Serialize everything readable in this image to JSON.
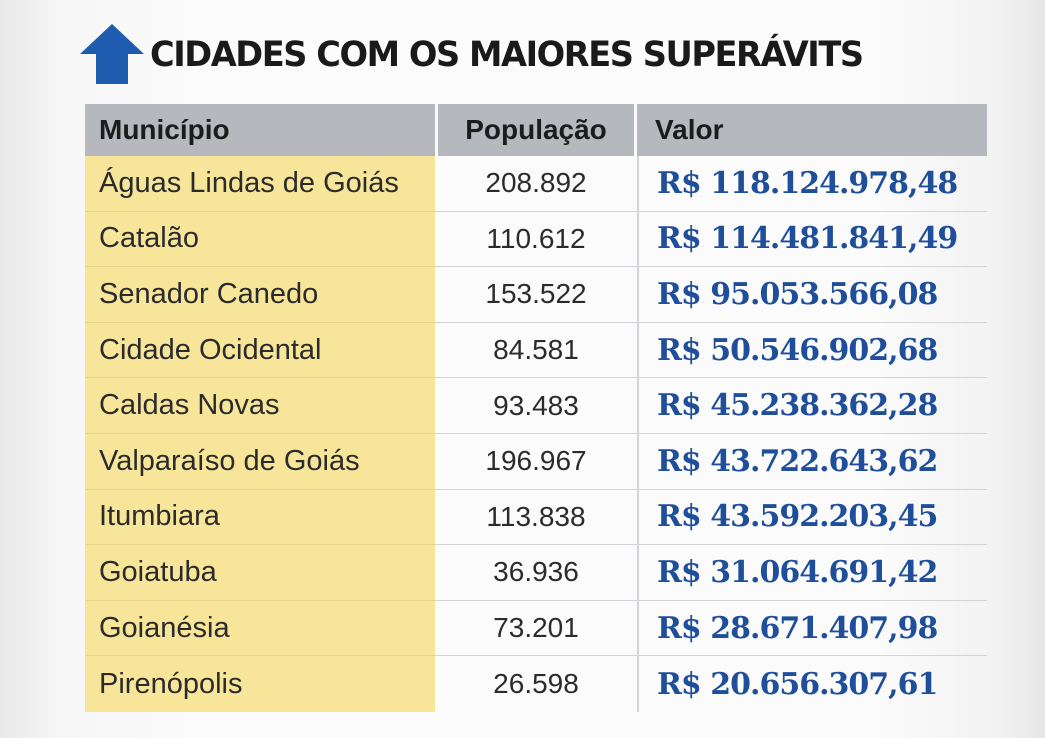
{
  "title": "CIDADES COM OS MAIORES SUPERÁVITS",
  "icon": "up-arrow-icon",
  "colors": {
    "arrow": "#1d5cae",
    "header_bg": "#b5b9be",
    "municipio_bg": "#f7e59a",
    "valor_text": "#1f4e9a"
  },
  "table": {
    "headers": {
      "municipio": "Município",
      "populacao": "População",
      "valor": "Valor"
    },
    "rows": [
      {
        "municipio": "Águas Lindas de Goiás",
        "populacao": "208.892",
        "valor": "R$ 118.124.978,48"
      },
      {
        "municipio": "Catalão",
        "populacao": "110.612",
        "valor": "R$ 114.481.841,49"
      },
      {
        "municipio": "Senador Canedo",
        "populacao": "153.522",
        "valor": "R$ 95.053.566,08"
      },
      {
        "municipio": "Cidade Ocidental",
        "populacao": "84.581",
        "valor": "R$ 50.546.902,68"
      },
      {
        "municipio": "Caldas Novas",
        "populacao": "93.483",
        "valor": "R$ 45.238.362,28"
      },
      {
        "municipio": "Valparaíso de Goiás",
        "populacao": "196.967",
        "valor": "R$ 43.722.643,62"
      },
      {
        "municipio": "Itumbiara",
        "populacao": "113.838",
        "valor": "R$ 43.592.203,45"
      },
      {
        "municipio": "Goiatuba",
        "populacao": "36.936",
        "valor": "R$ 31.064.691,42"
      },
      {
        "municipio": "Goianésia",
        "populacao": "73.201",
        "valor": "R$ 28.671.407,98"
      },
      {
        "municipio": "Pirenópolis",
        "populacao": "26.598",
        "valor": "R$ 20.656.307,61"
      }
    ]
  }
}
